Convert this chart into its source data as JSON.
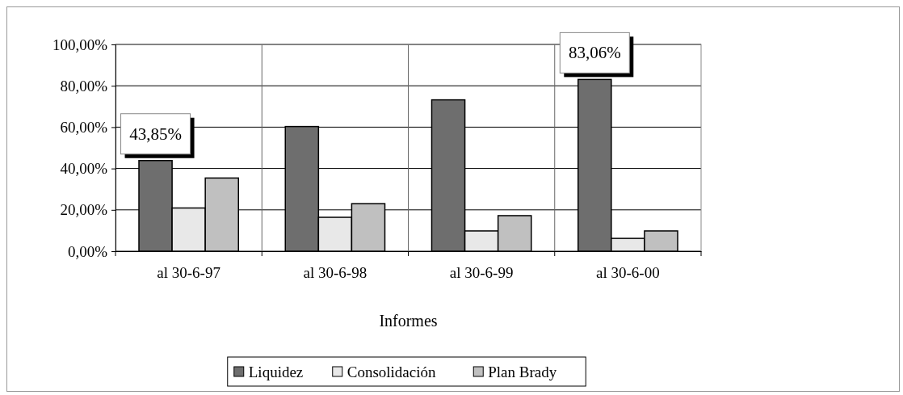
{
  "chart_data": {
    "type": "bar",
    "xlabel": "Informes",
    "categories": [
      "al 30-6-97",
      "al 30-6-98",
      "al 30-6-99",
      "al 30-6-00"
    ],
    "series": [
      {
        "name": "Liquidez",
        "color": "#6e6e6e",
        "values": [
          43.85,
          60.3,
          73.2,
          83.06
        ],
        "value_labels": [
          "43,85%",
          null,
          null,
          "83,06%"
        ]
      },
      {
        "name": "Consolidación",
        "color": "#e8e8e8",
        "values": [
          20.9,
          16.4,
          9.8,
          6.2
        ]
      },
      {
        "name": "Plan Brady",
        "color": "#c0c0c0",
        "values": [
          35.4,
          23.0,
          17.2,
          9.8
        ]
      }
    ],
    "ylim": [
      0,
      100
    ],
    "yticks": [
      {
        "value": 0,
        "label": "0,00%"
      },
      {
        "value": 20,
        "label": "20,00%"
      },
      {
        "value": 40,
        "label": "40,00%"
      },
      {
        "value": 60,
        "label": "60,00%"
      },
      {
        "value": 80,
        "label": "80,00%"
      },
      {
        "value": 100,
        "label": "100,00%"
      }
    ],
    "grid": true,
    "legend": "bottom"
  }
}
